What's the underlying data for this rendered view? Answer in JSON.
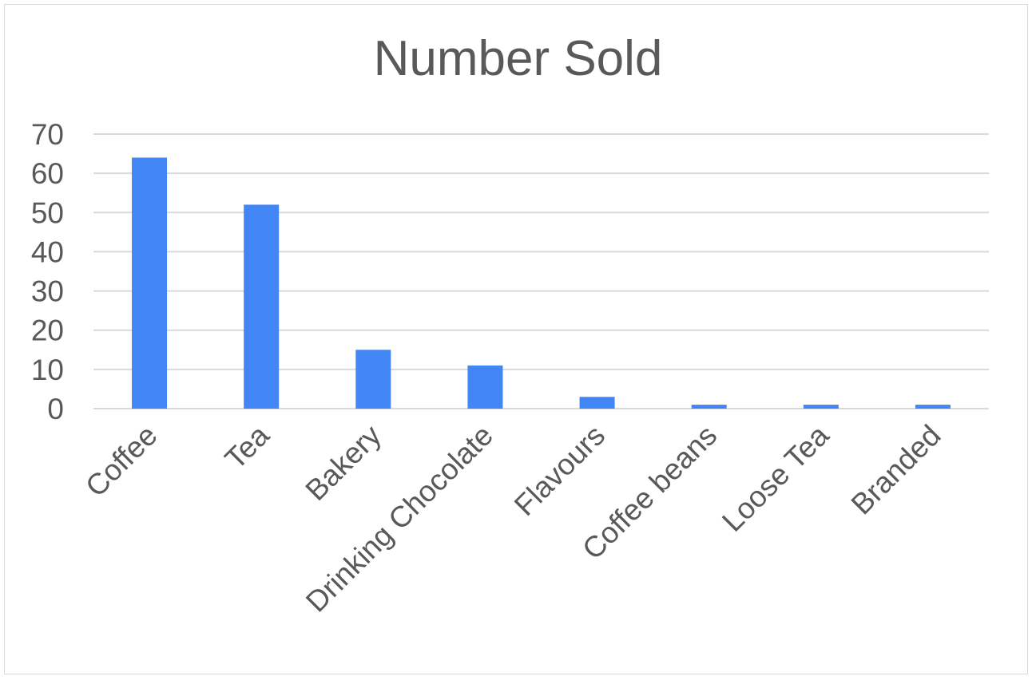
{
  "chart_data": {
    "type": "bar",
    "title": "Number Sold",
    "xlabel": "",
    "ylabel": "",
    "categories": [
      "Coffee",
      "Tea",
      "Bakery",
      "Drinking Chocolate",
      "Flavours",
      "Coffee beans",
      "Loose Tea",
      "Branded"
    ],
    "values": [
      64,
      52,
      15,
      11,
      3,
      1,
      1,
      1
    ],
    "ylim": [
      0,
      70
    ],
    "yticks": [
      0,
      10,
      20,
      30,
      40,
      50,
      60,
      70
    ],
    "grid": true,
    "legend": "none",
    "bar_color": "#4285f4",
    "grid_color": "#d9d9d9",
    "text_color": "#595959"
  }
}
